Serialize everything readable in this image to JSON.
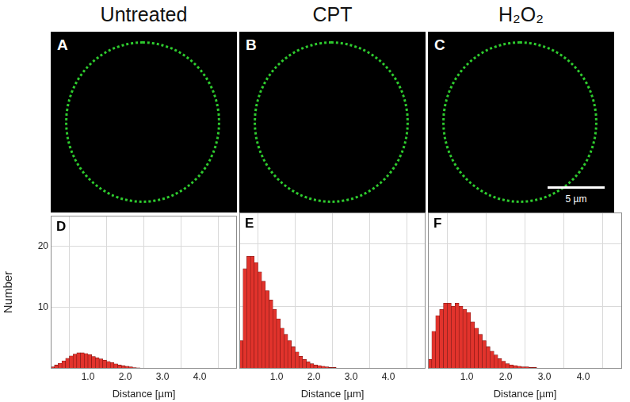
{
  "columns": [
    "Untreated",
    "CPT",
    "H₂O₂"
  ],
  "images": [
    {
      "label": "A"
    },
    {
      "label": "B"
    },
    {
      "label": "C",
      "scale_bar": "5 µm"
    }
  ],
  "chart_data": [
    {
      "type": "histogram",
      "annotation": "D",
      "x_label": "Distance [µm]",
      "y_label": "Number",
      "bins": [
        0,
        0.1,
        0.2,
        0.3,
        0.4,
        0.5,
        0.6,
        0.7,
        0.8,
        0.9,
        1.0,
        1.1,
        1.2,
        1.3,
        1.4,
        1.5,
        1.6,
        1.7,
        1.8,
        1.9,
        2.0,
        2.1,
        2.2,
        2.3,
        2.4,
        2.5,
        2.6,
        2.7,
        2.8,
        2.9,
        3.0,
        3.1,
        3.2,
        3.3,
        3.4,
        3.5,
        3.6,
        3.7,
        3.8,
        3.9,
        4.0
      ],
      "values": [
        0.3,
        0.6,
        0.9,
        1.3,
        1.7,
        2.1,
        2.4,
        2.6,
        2.6,
        2.5,
        2.3,
        2.0,
        1.8,
        1.6,
        1.4,
        1.2,
        1.0,
        0.8,
        0.6,
        0.5,
        0.4,
        0.3,
        0.2,
        0.15,
        0.1,
        0.1,
        0.05,
        0,
        0,
        0,
        0,
        0,
        0,
        0,
        0,
        0,
        0,
        0,
        0,
        0
      ],
      "color": "#e2332c",
      "xlim": [
        0,
        5
      ],
      "xticks": [
        {
          "value": 1,
          "label": "1.0"
        },
        {
          "value": 2,
          "label": "2.0"
        },
        {
          "value": 3,
          "label": "3.0"
        },
        {
          "value": 4,
          "label": "4.0"
        }
      ],
      "ylim": [
        0,
        25
      ],
      "yticks": [
        10,
        20
      ],
      "grid": true,
      "tick_labels": true
    },
    {
      "type": "histogram",
      "annotation": "E",
      "x_label": "Distance [µm]",
      "bins": [
        0,
        0.1,
        0.2,
        0.3,
        0.4,
        0.5,
        0.6,
        0.7,
        0.8,
        0.9,
        1.0,
        1.1,
        1.2,
        1.3,
        1.4,
        1.5,
        1.6,
        1.7,
        1.8,
        1.9,
        2.0,
        2.1,
        2.2,
        2.3,
        2.4,
        2.5,
        2.6,
        2.7,
        2.8,
        2.9,
        3.0,
        3.1,
        3.2,
        3.3,
        3.4,
        3.5,
        3.6,
        3.7,
        3.8,
        3.9,
        4.0
      ],
      "values": [
        4.5,
        16,
        18,
        18,
        17,
        15.5,
        14,
        12.5,
        11,
        9.5,
        8,
        6.5,
        5.5,
        4.5,
        3.5,
        2.7,
        2,
        1.5,
        1.1,
        0.8,
        0.6,
        0.5,
        0.4,
        0.3,
        0.2,
        0.2,
        0.1,
        0.1,
        0.05,
        0,
        0,
        0,
        0,
        0,
        0,
        0,
        0,
        0,
        0,
        0
      ],
      "color": "#e2332c",
      "xlim": [
        0,
        5
      ],
      "xticks": [
        {
          "value": 1,
          "label": "1.0"
        },
        {
          "value": 2,
          "label": "2.0"
        },
        {
          "value": 3,
          "label": "3.0"
        },
        {
          "value": 4,
          "label": "4.0"
        }
      ],
      "ylim": [
        0,
        25
      ],
      "yticks": [
        10,
        20
      ],
      "grid": true,
      "tick_labels": "x"
    },
    {
      "type": "histogram",
      "annotation": "F",
      "x_label": "Distance [µm]",
      "bins": [
        0,
        0.1,
        0.2,
        0.3,
        0.4,
        0.5,
        0.6,
        0.7,
        0.8,
        0.9,
        1.0,
        1.1,
        1.2,
        1.3,
        1.4,
        1.5,
        1.6,
        1.7,
        1.8,
        1.9,
        2.0,
        2.1,
        2.2,
        2.3,
        2.4,
        2.5,
        2.6,
        2.7,
        2.8,
        2.9,
        3.0,
        3.1,
        3.2,
        3.3,
        3.4,
        3.5,
        3.6,
        3.7,
        3.8,
        3.9,
        4.0
      ],
      "values": [
        1.5,
        6,
        8.5,
        9.5,
        10.5,
        10.5,
        10,
        10.5,
        10,
        9.5,
        9,
        7.5,
        6.5,
        5.5,
        4.5,
        3.5,
        2.8,
        2.2,
        1.6,
        1.2,
        0.8,
        0.6,
        0.5,
        0.4,
        0.3,
        0.3,
        0.2,
        0.2,
        0.1,
        0.1,
        0.1,
        0.05,
        0.05,
        0.05,
        0.05,
        0.05,
        0.05,
        0.1,
        0.05,
        0
      ],
      "color": "#e2332c",
      "xlim": [
        0,
        5
      ],
      "xticks": [
        {
          "value": 1,
          "label": "1.0"
        },
        {
          "value": 2,
          "label": "2.0"
        },
        {
          "value": 3,
          "label": "3.0"
        },
        {
          "value": 4,
          "label": "4.0"
        }
      ],
      "ylim": [
        0,
        25
      ],
      "yticks": [
        10,
        20
      ],
      "grid": true,
      "tick_labels": "x"
    }
  ]
}
